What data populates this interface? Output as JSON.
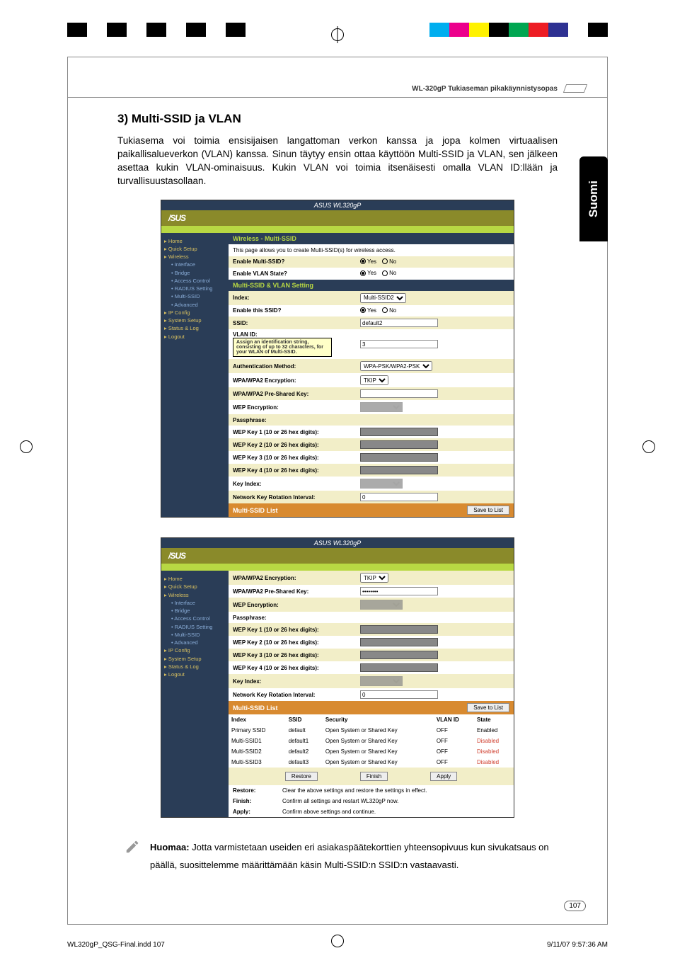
{
  "colorbar_left": [
    "#000000",
    "#ffffff",
    "#000000",
    "#ffffff",
    "#000000",
    "#ffffff",
    "#000000",
    "#ffffff",
    "#000000"
  ],
  "colorbar_right": [
    "#00aeef",
    "#ec008c",
    "#fff200",
    "#000000",
    "#00a651",
    "#ed1c24",
    "#2e3192",
    "#ffffff",
    "#000000"
  ],
  "header": {
    "product": "WL-320gP Tukiaseman pikakäynnistysopas"
  },
  "section_title": "3) Multi-SSID ja VLAN",
  "body_text": "Tukiasema voi toimia ensisijaisen langattoman verkon kanssa ja jopa kolmen virtuaalisen paikallisalueverkon (VLAN) kanssa. Sinun täytyy ensin ottaa käyttöön Multi-SSID ja VLAN, sen jälkeen asettaa kukin VLAN-ominaisuus. Kukin VLAN voi toimia itsenäisesti omalla VLAN ID:llään ja turvallisuustasollaan.",
  "side_tab": "Suomi",
  "screenshot1": {
    "titlebar": "ASUS WL320gP",
    "logo": "/SUS",
    "sidebar": {
      "items": [
        {
          "label": "Home",
          "cls": "folder"
        },
        {
          "label": "Quick Setup",
          "cls": "folder"
        },
        {
          "label": "Wireless",
          "cls": "folder"
        },
        {
          "label": "Interface",
          "cls": "item"
        },
        {
          "label": "Bridge",
          "cls": "item"
        },
        {
          "label": "Access Control",
          "cls": "item"
        },
        {
          "label": "RADIUS Setting",
          "cls": "item"
        },
        {
          "label": "Multi-SSID",
          "cls": "item"
        },
        {
          "label": "Advanced",
          "cls": "item"
        },
        {
          "label": "IP Config",
          "cls": "folder"
        },
        {
          "label": "System Setup",
          "cls": "folder"
        },
        {
          "label": "Status & Log",
          "cls": "folder"
        },
        {
          "label": "Logout",
          "cls": "folder"
        }
      ]
    },
    "hdr1": "Wireless - Multi-SSID",
    "intro": "This page allows you to create Multi-SSID(s) for wireless access.",
    "rows1": [
      {
        "label": "Enable Multi-SSID?",
        "type": "radio",
        "opts": [
          "Yes",
          "No"
        ],
        "sel": 0
      },
      {
        "label": "Enable VLAN State?",
        "type": "radio",
        "opts": [
          "Yes",
          "No"
        ],
        "sel": 0
      }
    ],
    "hdr2": "Multi-SSID & VLAN Setting",
    "rows2": [
      {
        "label": "Index:",
        "type": "select",
        "value": "Multi-SSID2"
      },
      {
        "label": "Enable this SSID?",
        "type": "radio",
        "opts": [
          "Yes",
          "No"
        ],
        "sel": 0
      },
      {
        "label": "SSID:",
        "type": "text",
        "value": "default2"
      },
      {
        "label": "VLAN ID:",
        "type": "tooltip",
        "value": "3",
        "tip": "Assign an identification string, consisting of up to 32 characters, for your WLAN of Multi-SSID."
      },
      {
        "label": "Authentication Method:",
        "type": "select",
        "value": "WPA-PSK/WPA2-PSK"
      },
      {
        "label": "WPA/WPA2 Encryption:",
        "type": "select",
        "value": "TKIP"
      },
      {
        "label": "WPA/WPA2 Pre-Shared Key:",
        "type": "text",
        "value": ""
      },
      {
        "label": "WEP Encryption:",
        "type": "select_dark",
        "value": ""
      },
      {
        "label": "Passphrase:",
        "type": "none"
      },
      {
        "label": "WEP Key 1 (10 or 26 hex digits):",
        "type": "dark"
      },
      {
        "label": "WEP Key 2 (10 or 26 hex digits):",
        "type": "dark"
      },
      {
        "label": "WEP Key 3 (10 or 26 hex digits):",
        "type": "dark"
      },
      {
        "label": "WEP Key 4 (10 or 26 hex digits):",
        "type": "dark"
      },
      {
        "label": "Key Index:",
        "type": "select_dark",
        "value": ""
      },
      {
        "label": "Network Key Rotation Interval:",
        "type": "text",
        "value": "0"
      }
    ],
    "hdr3": "Multi-SSID List",
    "save_btn": "Save to List"
  },
  "screenshot2": {
    "titlebar": "ASUS WL320gP",
    "logo": "/SUS",
    "sidebar": {
      "items": [
        {
          "label": "Home",
          "cls": "folder"
        },
        {
          "label": "Quick Setup",
          "cls": "folder"
        },
        {
          "label": "Wireless",
          "cls": "folder"
        },
        {
          "label": "Interface",
          "cls": "item"
        },
        {
          "label": "Bridge",
          "cls": "item"
        },
        {
          "label": "Access Control",
          "cls": "item"
        },
        {
          "label": "RADIUS Setting",
          "cls": "item"
        },
        {
          "label": "Multi-SSID",
          "cls": "item"
        },
        {
          "label": "Advanced",
          "cls": "item"
        },
        {
          "label": "IP Config",
          "cls": "folder"
        },
        {
          "label": "System Setup",
          "cls": "folder"
        },
        {
          "label": "Status & Log",
          "cls": "folder"
        },
        {
          "label": "Logout",
          "cls": "folder"
        }
      ]
    },
    "rows": [
      {
        "label": "WPA/WPA2 Encryption:",
        "type": "select",
        "value": "TKIP"
      },
      {
        "label": "WPA/WPA2 Pre-Shared Key:",
        "type": "password",
        "value": "••••••••"
      },
      {
        "label": "WEP Encryption:",
        "type": "select_dark",
        "value": ""
      },
      {
        "label": "Passphrase:",
        "type": "none"
      },
      {
        "label": "WEP Key 1 (10 or 26 hex digits):",
        "type": "dark"
      },
      {
        "label": "WEP Key 2 (10 or 26 hex digits):",
        "type": "dark"
      },
      {
        "label": "WEP Key 3 (10 or 26 hex digits):",
        "type": "dark"
      },
      {
        "label": "WEP Key 4 (10 or 26 hex digits):",
        "type": "dark"
      },
      {
        "label": "Key Index:",
        "type": "select_dark",
        "value": ""
      },
      {
        "label": "Network Key Rotation Interval:",
        "type": "text",
        "value": "0"
      }
    ],
    "hdr_list": "Multi-SSID List",
    "save_btn": "Save to List",
    "table": {
      "cols": [
        "Index",
        "SSID",
        "Security",
        "VLAN ID",
        "State"
      ],
      "rows": [
        [
          "Primary SSID",
          "default",
          "Open System or Shared Key",
          "OFF",
          "Enabled"
        ],
        [
          "Multi-SSID1",
          "default1",
          "Open System or Shared Key",
          "OFF",
          "Disabled"
        ],
        [
          "Multi-SSID2",
          "default2",
          "Open System or Shared Key",
          "OFF",
          "Disabled"
        ],
        [
          "Multi-SSID3",
          "default3",
          "Open System or Shared Key",
          "OFF",
          "Disabled"
        ]
      ]
    },
    "buttons": [
      "Restore",
      "Finish",
      "Apply"
    ],
    "desc": [
      {
        "k": "Restore:",
        "v": "Clear the above settings and restore the settings in effect."
      },
      {
        "k": "Finish:",
        "v": "Confirm all settings and restart WL320gP now."
      },
      {
        "k": "Apply:",
        "v": "Confirm above settings and continue."
      }
    ]
  },
  "note": {
    "label": "Huomaa:",
    "text": " Jotta varmistetaan useiden eri asiakaspäätekorttien yhteensopivuus kun sivukatsaus on päällä, suosittelemme määrittämään käsin Multi-SSID:n SSID:n vastaavasti."
  },
  "page_number": "107",
  "footer": {
    "file": "WL320gP_QSG-Final.indd   107",
    "date": "9/11/07   9:57:36 AM"
  }
}
